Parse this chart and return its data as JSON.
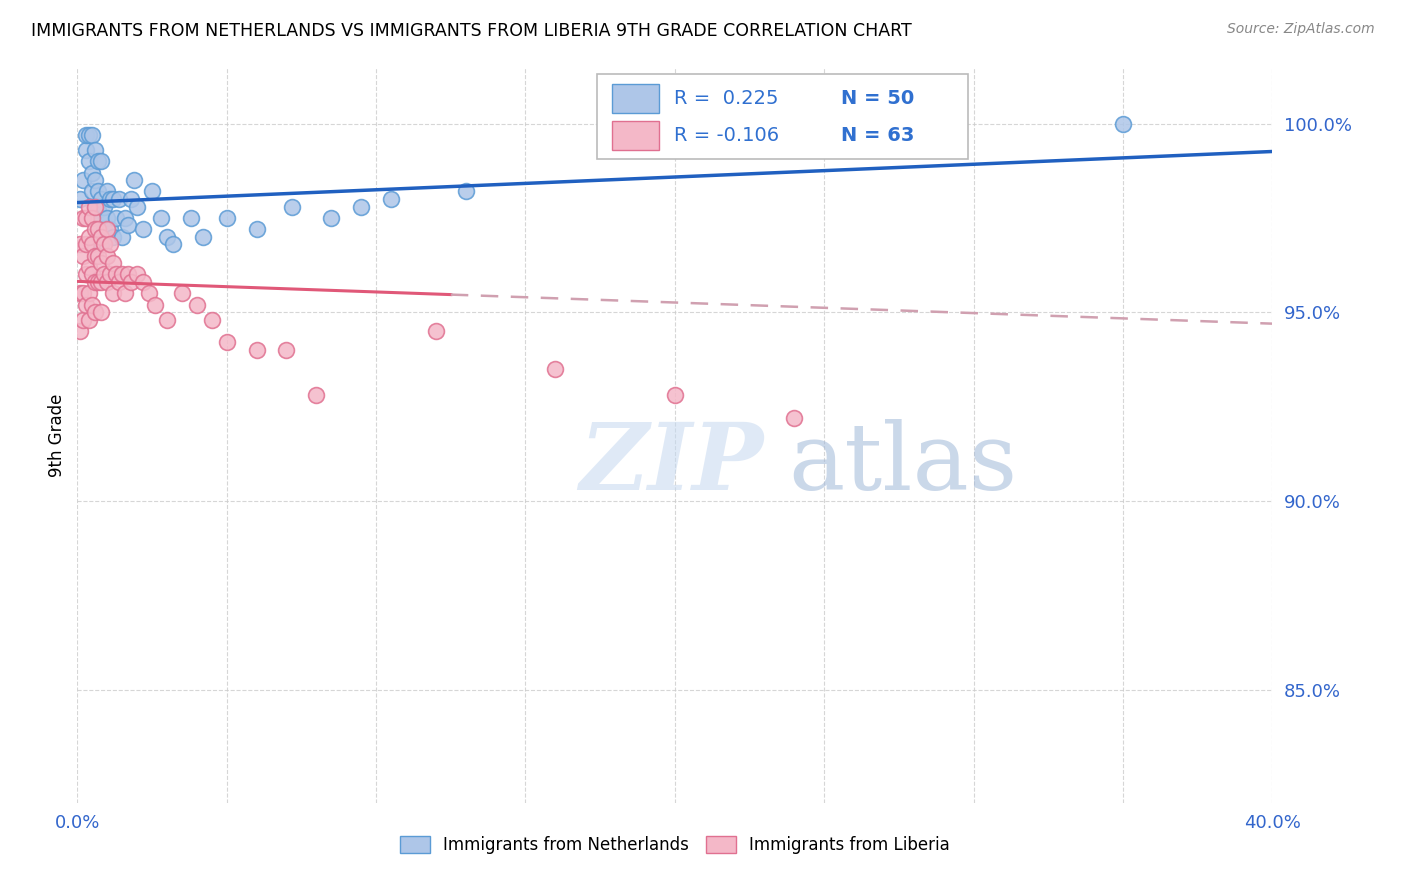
{
  "title": "IMMIGRANTS FROM NETHERLANDS VS IMMIGRANTS FROM LIBERIA 9TH GRADE CORRELATION CHART",
  "source": "Source: ZipAtlas.com",
  "ylabel": "9th Grade",
  "x_min": 0.0,
  "x_max": 0.4,
  "y_min": 0.82,
  "y_max": 1.015,
  "y_ticks": [
    0.85,
    0.9,
    0.95,
    1.0
  ],
  "x_ticks": [
    0.0,
    0.05,
    0.1,
    0.15,
    0.2,
    0.25,
    0.3,
    0.35,
    0.4
  ],
  "netherlands_color": "#aec6e8",
  "netherlands_edge_color": "#5b9bd5",
  "liberia_color": "#f4b8c8",
  "liberia_edge_color": "#e07090",
  "netherlands_line_color": "#2060c0",
  "liberia_line_color": "#e05878",
  "liberia_line_dash_color": "#d0a0b0",
  "r_netherlands": 0.225,
  "n_netherlands": 50,
  "r_liberia": -0.106,
  "n_liberia": 63,
  "legend_color": "#3070d0",
  "watermark_zip": "ZIP",
  "watermark_atlas": "atlas",
  "background_color": "#ffffff",
  "grid_color": "#cccccc",
  "nl_x": [
    0.001,
    0.002,
    0.003,
    0.003,
    0.004,
    0.004,
    0.005,
    0.005,
    0.005,
    0.006,
    0.006,
    0.006,
    0.007,
    0.007,
    0.007,
    0.008,
    0.008,
    0.008,
    0.008,
    0.009,
    0.009,
    0.01,
    0.01,
    0.011,
    0.011,
    0.012,
    0.012,
    0.013,
    0.014,
    0.015,
    0.016,
    0.017,
    0.018,
    0.019,
    0.02,
    0.022,
    0.025,
    0.028,
    0.03,
    0.032,
    0.038,
    0.042,
    0.05,
    0.06,
    0.072,
    0.085,
    0.095,
    0.105,
    0.13,
    0.35
  ],
  "nl_y": [
    0.98,
    0.985,
    0.993,
    0.997,
    0.99,
    0.997,
    0.987,
    0.982,
    0.997,
    0.985,
    0.978,
    0.993,
    0.982,
    0.977,
    0.99,
    0.98,
    0.975,
    0.968,
    0.99,
    0.978,
    0.972,
    0.982,
    0.975,
    0.98,
    0.972,
    0.98,
    0.97,
    0.975,
    0.98,
    0.97,
    0.975,
    0.973,
    0.98,
    0.985,
    0.978,
    0.972,
    0.982,
    0.975,
    0.97,
    0.968,
    0.975,
    0.97,
    0.975,
    0.972,
    0.978,
    0.975,
    0.978,
    0.98,
    0.982,
    1.0
  ],
  "lib_x": [
    0.001,
    0.001,
    0.001,
    0.002,
    0.002,
    0.002,
    0.002,
    0.003,
    0.003,
    0.003,
    0.003,
    0.004,
    0.004,
    0.004,
    0.004,
    0.004,
    0.005,
    0.005,
    0.005,
    0.005,
    0.006,
    0.006,
    0.006,
    0.006,
    0.006,
    0.007,
    0.007,
    0.007,
    0.008,
    0.008,
    0.008,
    0.008,
    0.009,
    0.009,
    0.01,
    0.01,
    0.01,
    0.011,
    0.011,
    0.012,
    0.012,
    0.013,
    0.014,
    0.015,
    0.016,
    0.017,
    0.018,
    0.02,
    0.022,
    0.024,
    0.026,
    0.03,
    0.035,
    0.04,
    0.045,
    0.05,
    0.06,
    0.07,
    0.08,
    0.12,
    0.16,
    0.2,
    0.24
  ],
  "lib_y": [
    0.968,
    0.955,
    0.945,
    0.975,
    0.965,
    0.955,
    0.948,
    0.975,
    0.968,
    0.96,
    0.952,
    0.978,
    0.97,
    0.962,
    0.955,
    0.948,
    0.975,
    0.968,
    0.96,
    0.952,
    0.978,
    0.972,
    0.965,
    0.958,
    0.95,
    0.972,
    0.965,
    0.958,
    0.97,
    0.963,
    0.958,
    0.95,
    0.968,
    0.96,
    0.972,
    0.965,
    0.958,
    0.968,
    0.96,
    0.963,
    0.955,
    0.96,
    0.958,
    0.96,
    0.955,
    0.96,
    0.958,
    0.96,
    0.958,
    0.955,
    0.952,
    0.948,
    0.955,
    0.952,
    0.948,
    0.942,
    0.94,
    0.94,
    0.928,
    0.945,
    0.935,
    0.928,
    0.922
  ]
}
